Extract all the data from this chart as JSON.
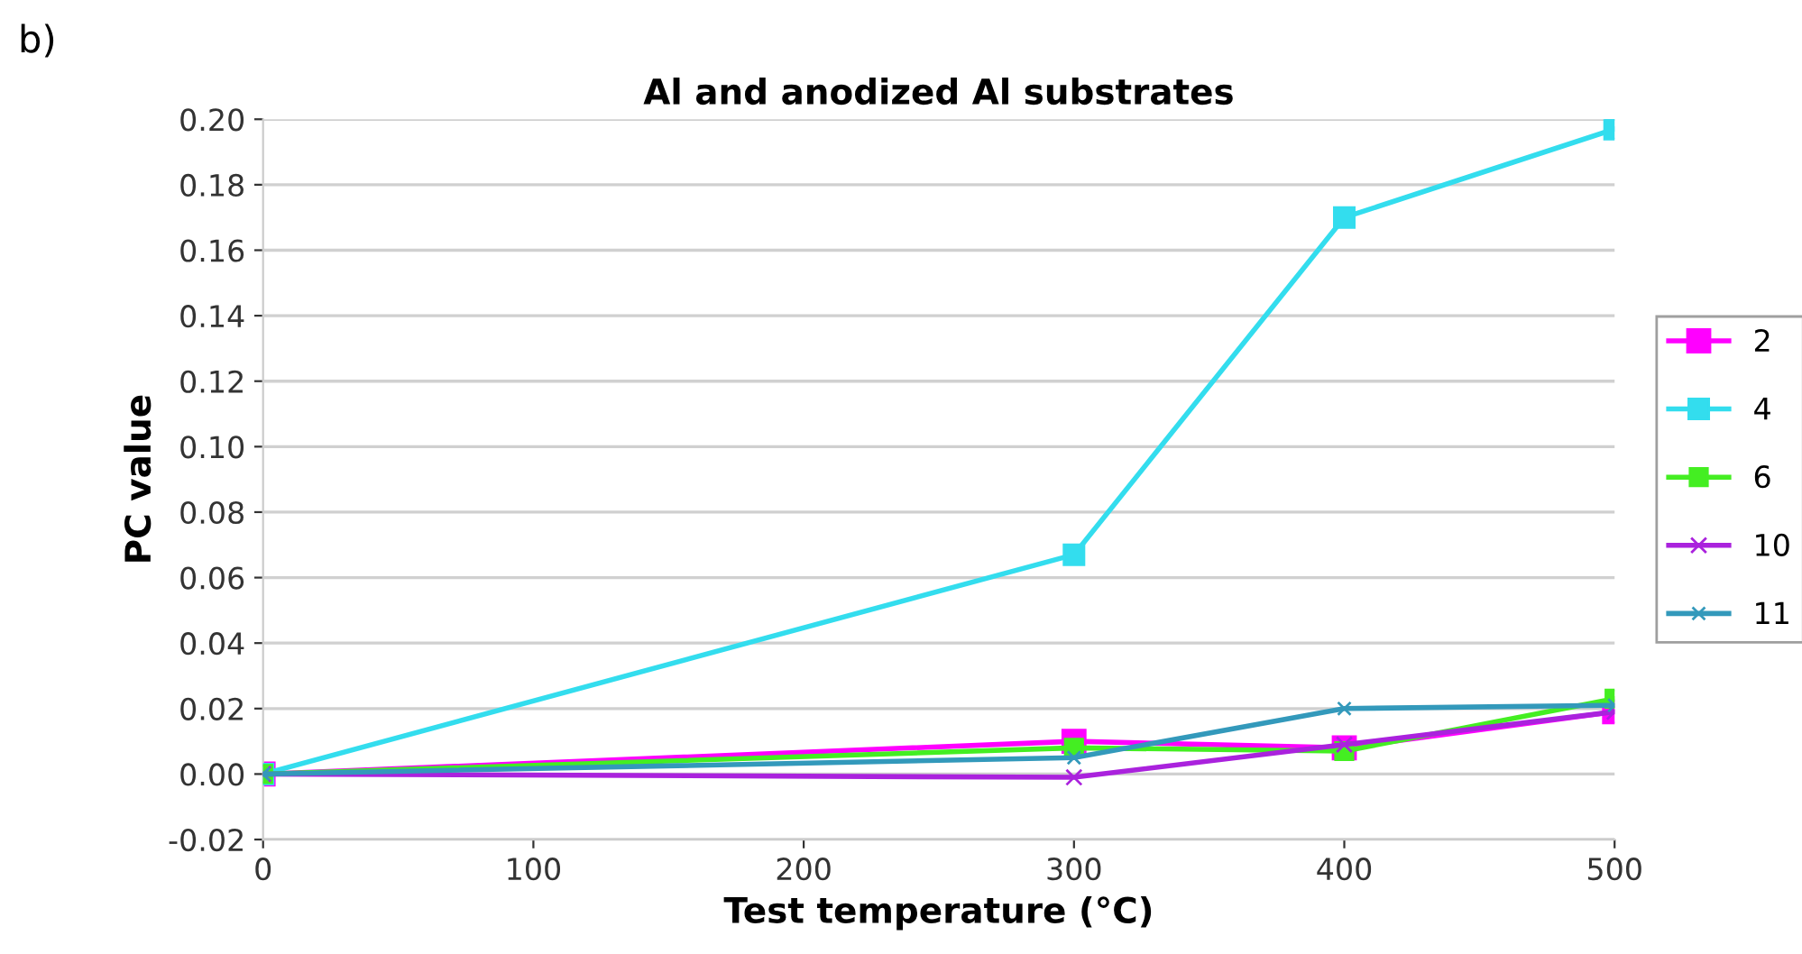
{
  "chart_data": {
    "type": "line",
    "title": "Al and anodized Al substrates",
    "xlabel": "Test temperature (°C)",
    "ylabel": "PC value",
    "annotations": [
      "b)"
    ],
    "x": [
      0,
      300,
      400,
      500
    ],
    "series": [
      {
        "name": "2",
        "color": "#ff00ff",
        "marker": "square",
        "values": [
          0,
          0.01,
          0.008,
          0.019
        ]
      },
      {
        "name": "4",
        "color": "#33ddee",
        "marker": "square",
        "values": [
          0,
          0.067,
          0.17,
          0.197
        ]
      },
      {
        "name": "6",
        "color": "#44ee22",
        "marker": "square",
        "values": [
          0,
          0.008,
          0.007,
          0.023
        ]
      },
      {
        "name": "10",
        "color": "#aa22dd",
        "marker": "cross",
        "values": [
          0,
          -0.001,
          0.009,
          0.019
        ]
      },
      {
        "name": "11",
        "color": "#3399bb",
        "marker": "cross",
        "values": [
          0,
          0.005,
          0.02,
          0.021
        ]
      }
    ],
    "xlim": [
      0,
      500
    ],
    "xticks": [
      0,
      100,
      200,
      300,
      400,
      500
    ],
    "ylim": [
      -0.02,
      0.2
    ],
    "yticks": [
      {
        "value": -0.02,
        "label": "-0.02"
      },
      {
        "value": 0,
        "label": "0.00"
      },
      {
        "value": 0.02,
        "label": "0.02"
      },
      {
        "value": 0.04,
        "label": "0.04"
      },
      {
        "value": 0.06,
        "label": "0.06"
      },
      {
        "value": 0.08,
        "label": "0.08"
      },
      {
        "value": 0.1,
        "label": "0.10"
      },
      {
        "value": 0.12,
        "label": "0.12"
      },
      {
        "value": 0.14,
        "label": "0.14"
      },
      {
        "value": 0.16,
        "label": "0.16"
      },
      {
        "value": 0.18,
        "label": "0.18"
      },
      {
        "value": 0.2,
        "label": "0.20"
      }
    ],
    "grid": "y",
    "legend": "right"
  }
}
